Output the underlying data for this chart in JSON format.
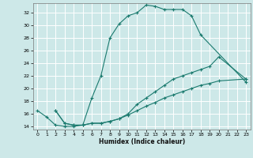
{
  "title": "",
  "xlabel": "Humidex (Indice chaleur)",
  "background_color": "#cde8e8",
  "grid_color": "#ffffff",
  "line_color": "#1a7a6e",
  "xlim": [
    -0.5,
    23.5
  ],
  "ylim": [
    13.5,
    33.5
  ],
  "xticks": [
    0,
    1,
    2,
    3,
    4,
    5,
    6,
    7,
    8,
    9,
    10,
    11,
    12,
    13,
    14,
    15,
    16,
    17,
    18,
    19,
    20,
    21,
    22,
    23
  ],
  "yticks": [
    14,
    16,
    18,
    20,
    22,
    24,
    26,
    28,
    30,
    32
  ],
  "line1_x": [
    0,
    1,
    2,
    3,
    4,
    5,
    6,
    7,
    8,
    9,
    10,
    11,
    12,
    13,
    14,
    15,
    16,
    17,
    18,
    23
  ],
  "line1_y": [
    16.5,
    15.5,
    14.2,
    14.0,
    14.0,
    14.2,
    18.5,
    22.0,
    28.0,
    30.2,
    31.5,
    32.0,
    33.2,
    33.0,
    32.5,
    32.5,
    32.5,
    31.5,
    28.5,
    21.0
  ],
  "line2_x": [
    2,
    3,
    4,
    5,
    6,
    7,
    8,
    9,
    10,
    11,
    12,
    13,
    14,
    15,
    16,
    17,
    18,
    19,
    20,
    23
  ],
  "line2_y": [
    16.5,
    14.5,
    14.2,
    14.2,
    14.5,
    14.5,
    14.8,
    15.2,
    16.0,
    17.5,
    18.5,
    19.5,
    20.5,
    21.5,
    22.0,
    22.5,
    23.0,
    23.5,
    25.0,
    21.5
  ],
  "line3_x": [
    2,
    3,
    4,
    5,
    6,
    7,
    8,
    9,
    10,
    11,
    12,
    13,
    14,
    15,
    16,
    17,
    18,
    19,
    20,
    23
  ],
  "line3_y": [
    16.5,
    14.5,
    14.2,
    14.2,
    14.5,
    14.5,
    14.8,
    15.2,
    15.8,
    16.5,
    17.2,
    17.8,
    18.5,
    19.0,
    19.5,
    20.0,
    20.5,
    20.8,
    21.2,
    21.5
  ]
}
